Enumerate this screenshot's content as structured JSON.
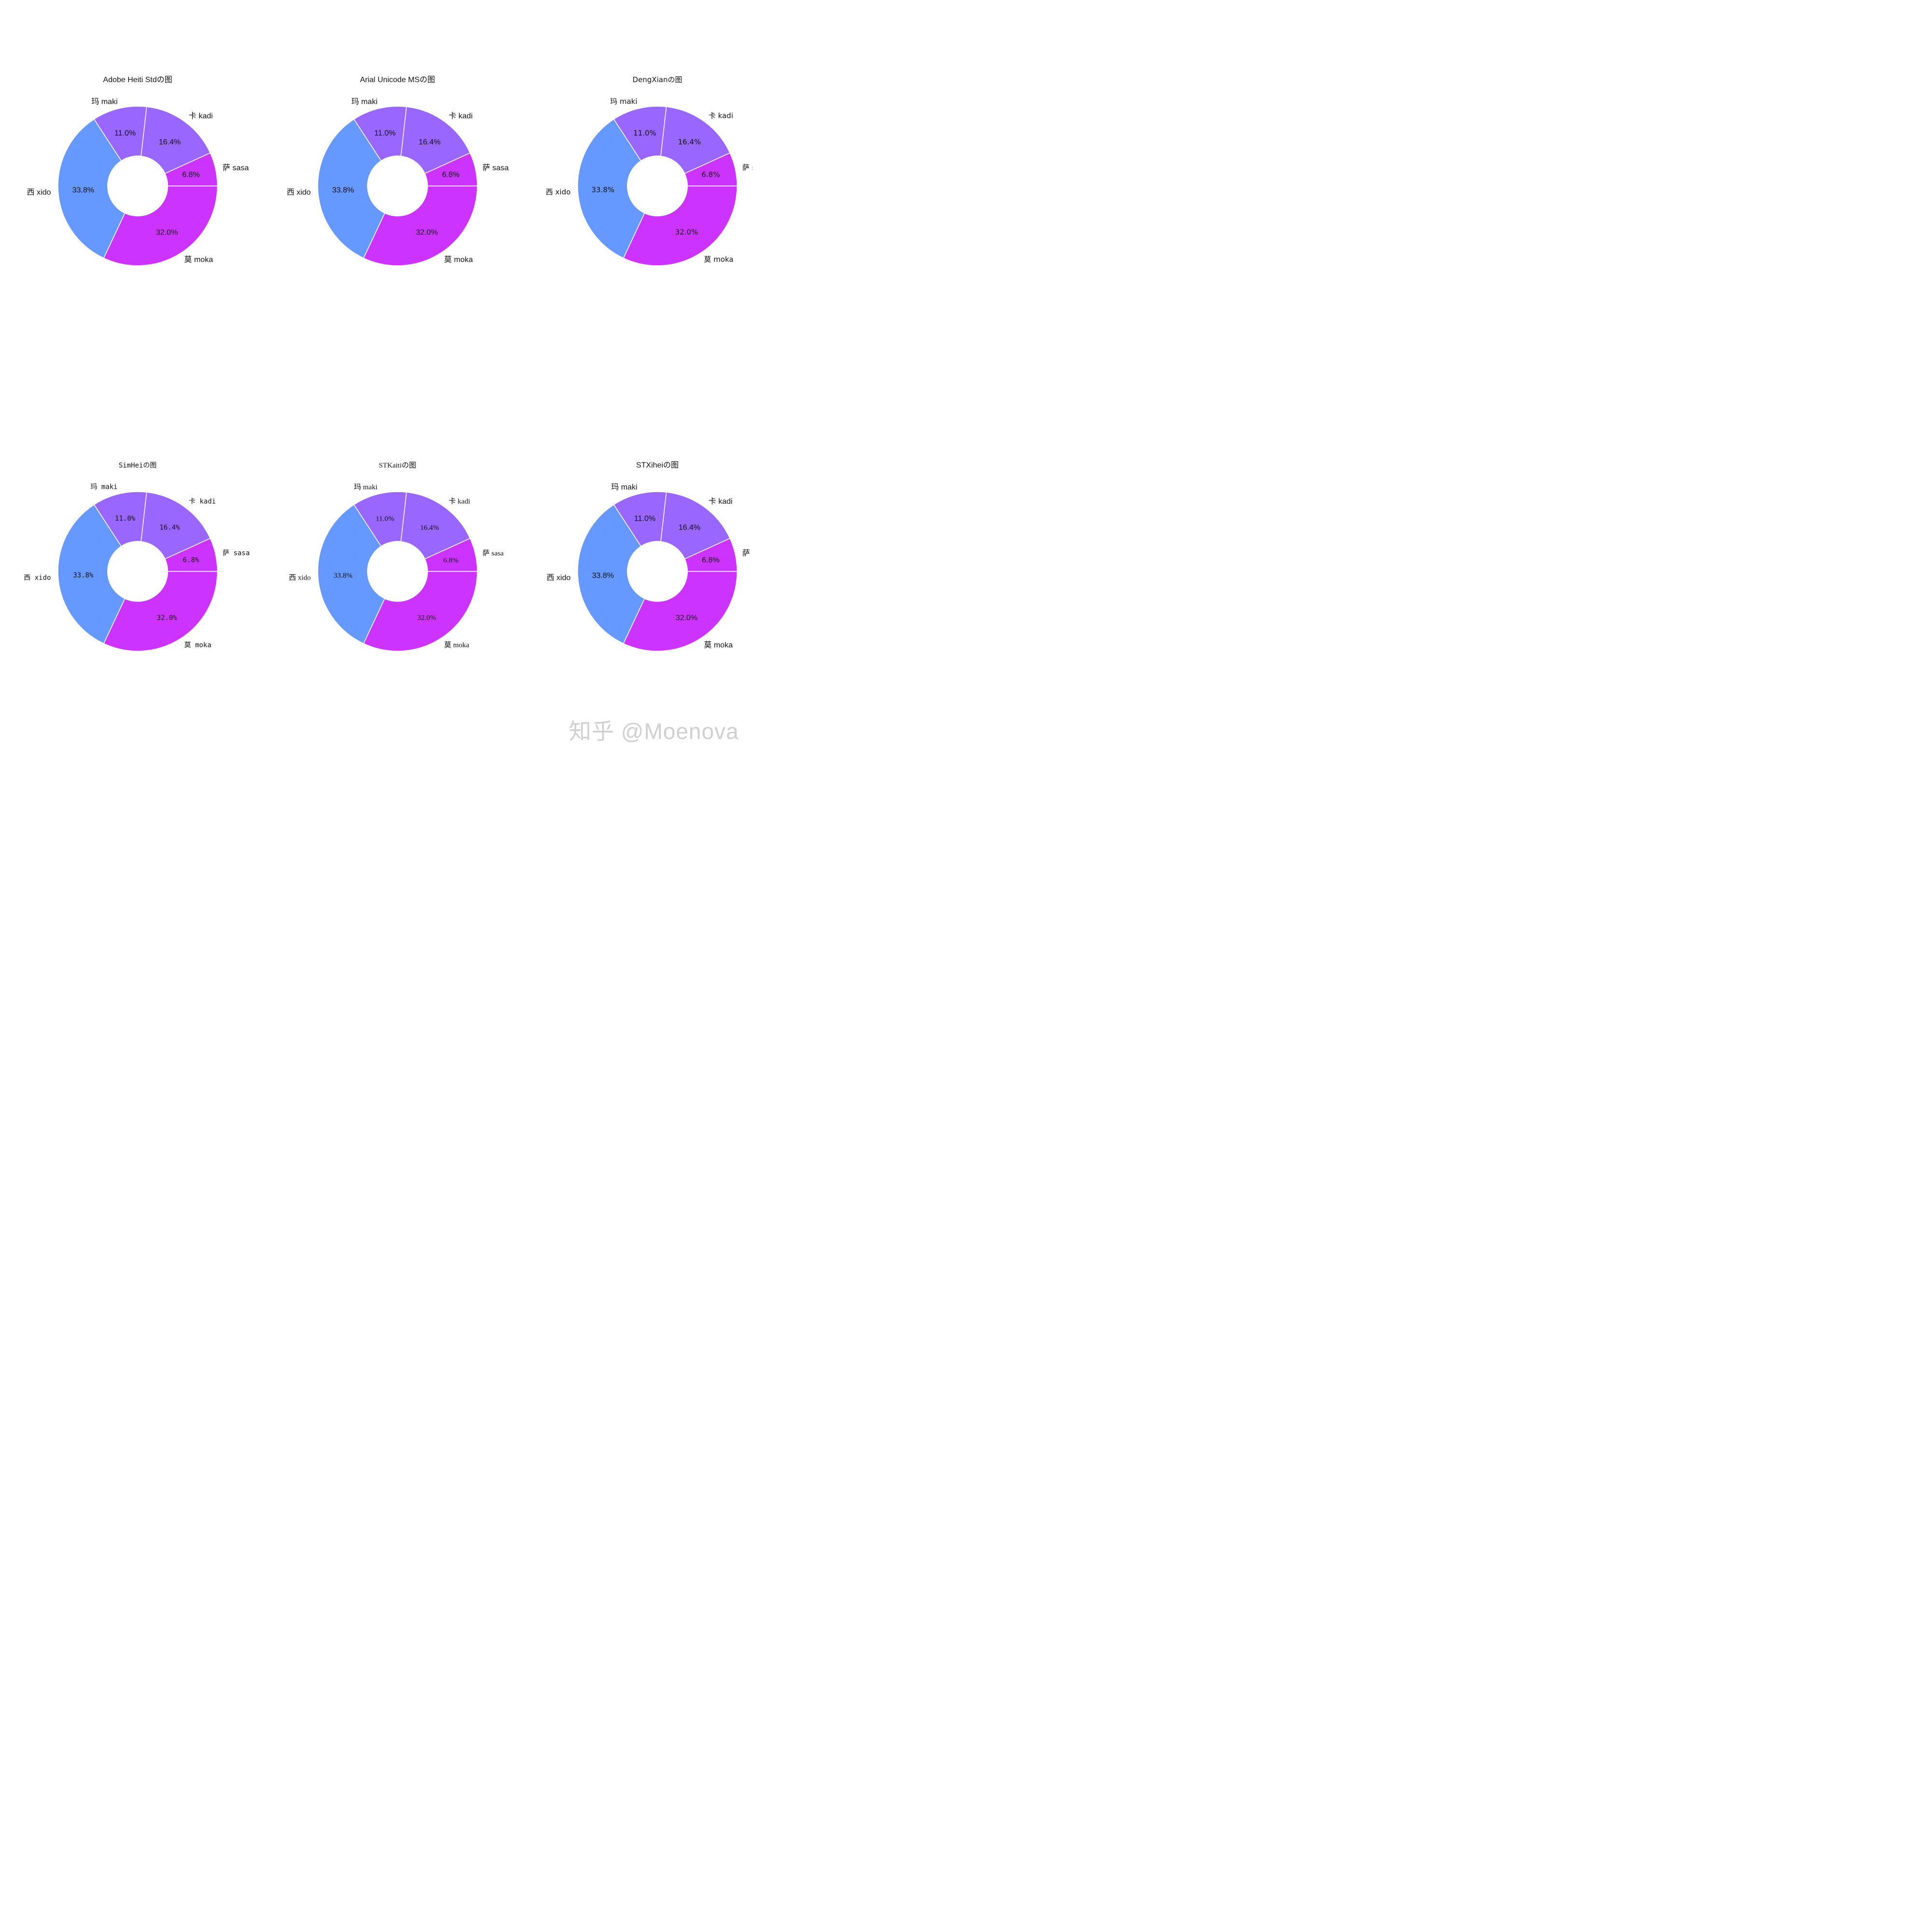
{
  "chart_data": [
    {
      "type": "pie",
      "title": "Adobe Heiti Stdの图",
      "categories": [
        "莫 moka",
        "西 xido",
        "玛 maki",
        "卡 kadi",
        "萨 sasa"
      ],
      "values": [
        32.0,
        33.8,
        11.0,
        16.4,
        6.8
      ],
      "value_labels": [
        "32.0%",
        "33.8%",
        "11.0%",
        "16.4%",
        "6.8%"
      ],
      "colors": [
        "#cc33ff",
        "#6699ff",
        "#9966ff",
        "#9966ff",
        "#cc33ff"
      ],
      "start_angle_deg": 0,
      "direction": "clockwise",
      "donut": true,
      "font_style": "sans"
    },
    {
      "type": "pie",
      "title": "Arial Unicode MSの图",
      "categories": [
        "莫 moka",
        "西 xido",
        "玛 maki",
        "卡 kadi",
        "萨 sasa"
      ],
      "values": [
        32.0,
        33.8,
        11.0,
        16.4,
        6.8
      ],
      "value_labels": [
        "32.0%",
        "33.8%",
        "11.0%",
        "16.4%",
        "6.8%"
      ],
      "colors": [
        "#cc33ff",
        "#6699ff",
        "#9966ff",
        "#9966ff",
        "#cc33ff"
      ],
      "start_angle_deg": 0,
      "direction": "clockwise",
      "donut": true,
      "font_style": "sans"
    },
    {
      "type": "pie",
      "title": "DengXianの图",
      "categories": [
        "莫 moka",
        "西 xido",
        "玛 maki",
        "卡 kadi",
        "萨 sasa"
      ],
      "values": [
        32.0,
        33.8,
        11.0,
        16.4,
        6.8
      ],
      "value_labels": [
        "32.0%",
        "33.8%",
        "11.0%",
        "16.4%",
        "6.8%"
      ],
      "colors": [
        "#cc33ff",
        "#6699ff",
        "#9966ff",
        "#9966ff",
        "#cc33ff"
      ],
      "start_angle_deg": 0,
      "direction": "clockwise",
      "donut": true,
      "font_style": "light"
    },
    {
      "type": "pie",
      "title": "SimHeiの图",
      "categories": [
        "莫 moka",
        "西 xido",
        "玛 maki",
        "卡 kadi",
        "萨 sasa"
      ],
      "values": [
        32.0,
        33.8,
        11.0,
        16.4,
        6.8
      ],
      "value_labels": [
        "32.0%",
        "33.8%",
        "11.0%",
        "16.4%",
        "6.8%"
      ],
      "colors": [
        "#cc33ff",
        "#6699ff",
        "#9966ff",
        "#9966ff",
        "#cc33ff"
      ],
      "start_angle_deg": 0,
      "direction": "clockwise",
      "donut": true,
      "font_style": "mono"
    },
    {
      "type": "pie",
      "title": "STKaitiの图",
      "categories": [
        "莫 moka",
        "西 xido",
        "玛 maki",
        "卡 kadi",
        "萨 sasa"
      ],
      "values": [
        32.0,
        33.8,
        11.0,
        16.4,
        6.8
      ],
      "value_labels": [
        "32.0%",
        "33.8%",
        "11.0%",
        "16.4%",
        "6.8%"
      ],
      "colors": [
        "#cc33ff",
        "#6699ff",
        "#9966ff",
        "#9966ff",
        "#cc33ff"
      ],
      "start_angle_deg": 0,
      "direction": "clockwise",
      "donut": true,
      "font_style": "serif"
    },
    {
      "type": "pie",
      "title": "STXiheiの图",
      "categories": [
        "莫 moka",
        "西 xido",
        "玛 maki",
        "卡 kadi",
        "萨 sasa"
      ],
      "values": [
        32.0,
        33.8,
        11.0,
        16.4,
        6.8
      ],
      "value_labels": [
        "32.0%",
        "33.8%",
        "11.0%",
        "16.4%",
        "6.8%"
      ],
      "colors": [
        "#cc33ff",
        "#6699ff",
        "#9966ff",
        "#9966ff",
        "#cc33ff"
      ],
      "start_angle_deg": 0,
      "direction": "clockwise",
      "donut": true,
      "font_style": "sans"
    }
  ],
  "watermark": "知乎 @Moenova"
}
